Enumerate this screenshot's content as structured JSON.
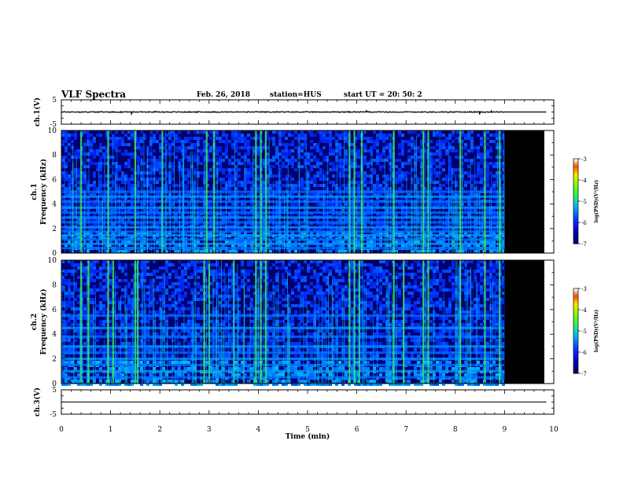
{
  "header": {
    "title": "VLF Spectra",
    "date": "Feb. 26, 2018",
    "station": "station=HUS",
    "start": "start  UT =   20: 50: 2"
  },
  "chart_data": [
    {
      "type": "line",
      "name": "ch1-waveform",
      "ylabel": "ch.1(V)",
      "ylim": [
        -5,
        5
      ],
      "yticks": [
        "5",
        "-5"
      ],
      "xlim": [
        0,
        10
      ],
      "signal_end_min": 9.0,
      "trace_level": 0,
      "noise_amplitude": 0.3
    },
    {
      "type": "heatmap",
      "name": "ch1-spectrogram",
      "channel_label": "ch.1",
      "ylabel": "Frequency (kHz)",
      "ylim": [
        0,
        10
      ],
      "yticks": [
        "0",
        "2",
        "4",
        "6",
        "8",
        "10"
      ],
      "xlim": [
        0,
        10
      ],
      "data_end_min": 9.0,
      "bands_khz": [
        0.4,
        0.75,
        1.1,
        1.45,
        1.75,
        2.1,
        2.5,
        2.9,
        3.3,
        3.7,
        4.2,
        4.6,
        5.0
      ],
      "bursts_min": [
        0.4,
        0.95,
        1.5,
        2.05,
        2.95,
        3.1,
        3.95,
        4.05,
        4.15,
        5.85,
        5.95,
        6.1,
        6.75,
        7.35,
        7.45,
        8.1,
        8.6,
        8.9
      ],
      "colorbar": {
        "label": "log(PSD)(V²/Hz)",
        "ticks": [
          "-3",
          "-4",
          "-5",
          "-6",
          "-7"
        ],
        "range": [
          -7,
          -3
        ]
      }
    },
    {
      "type": "heatmap",
      "name": "ch2-spectrogram",
      "channel_label": "ch.2",
      "ylabel": "Frequency (kHz)",
      "ylim": [
        0,
        10
      ],
      "yticks": [
        "0",
        "2",
        "4",
        "6",
        "8",
        "10"
      ],
      "xlim": [
        0,
        10
      ],
      "data_end_min": 9.0,
      "bands_khz": [
        0.5,
        1.0,
        1.5,
        2.0,
        2.5,
        3.0,
        3.8,
        4.5,
        5.5
      ],
      "bursts_min": [
        0.4,
        0.55,
        0.95,
        1.05,
        1.5,
        1.55,
        2.9,
        3.0,
        3.5,
        3.95,
        4.05,
        4.15,
        5.85,
        5.95,
        6.05,
        6.75,
        6.95,
        7.35,
        7.45,
        8.1,
        8.6,
        8.9
      ],
      "colorbar": {
        "label": "log(PSD)(V²/Hz)",
        "ticks": [
          "-3",
          "-4",
          "-5",
          "-6",
          "-7"
        ],
        "range": [
          -7,
          -3
        ]
      }
    },
    {
      "type": "line",
      "name": "ch3-waveform",
      "ylabel": "ch.3(V)",
      "ylim": [
        -5,
        5
      ],
      "yticks": [
        "5",
        "-5"
      ],
      "xlim": [
        0,
        10
      ],
      "trace_level": 0,
      "noise_amplitude": 0
    }
  ],
  "xaxis": {
    "label": "Time  (min)",
    "ticks": [
      "0",
      "1",
      "2",
      "3",
      "4",
      "5",
      "6",
      "7",
      "8",
      "9",
      "10"
    ]
  },
  "colors": {
    "background": "#ffffff",
    "no_data": "#000000",
    "trace": "#000000"
  }
}
